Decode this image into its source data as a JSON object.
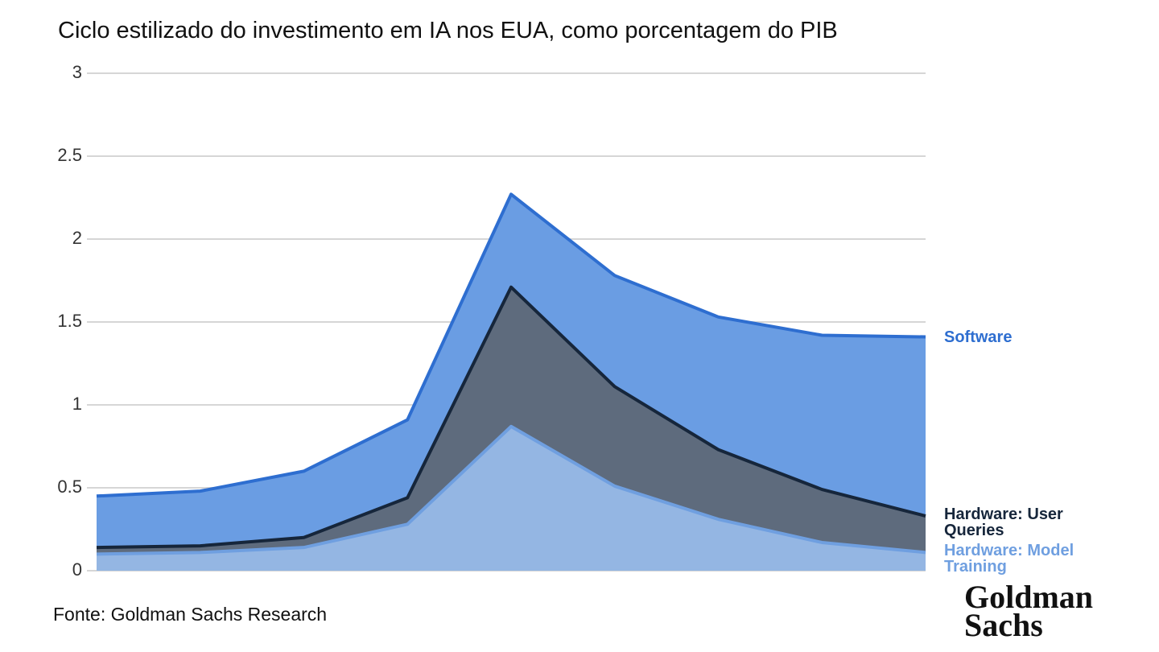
{
  "chart_data": {
    "type": "stacked-area",
    "title": "Ciclo estilizado do investimento em IA nos EUA, como porcentagem do PIB",
    "source": "Fonte: Goldman Sachs Research",
    "logo": "Goldman Sachs",
    "categories": [
      null,
      null,
      null,
      null,
      null,
      null,
      null,
      null,
      null
    ],
    "ylim": [
      0,
      3
    ],
    "yticks": [
      0,
      0.5,
      1,
      1.5,
      2,
      2.5,
      3
    ],
    "grid": true,
    "series": [
      {
        "name": "Hardware: Model Training",
        "color": "#94b6e3",
        "line_color": "#6f9fe0",
        "values": [
          0.1,
          0.11,
          0.14,
          0.28,
          0.87,
          0.51,
          0.31,
          0.17,
          0.11
        ]
      },
      {
        "name": "Hardware: User Queries",
        "color": "#5e6b7d",
        "line_color": "#16263b",
        "values": [
          0.04,
          0.04,
          0.06,
          0.16,
          0.84,
          0.6,
          0.42,
          0.32,
          0.22
        ]
      },
      {
        "name": "Software",
        "color": "#6a9de3",
        "line_color": "#2e6ed0",
        "values": [
          0.31,
          0.33,
          0.4,
          0.47,
          0.56,
          0.67,
          0.8,
          0.93,
          1.08
        ]
      }
    ]
  }
}
